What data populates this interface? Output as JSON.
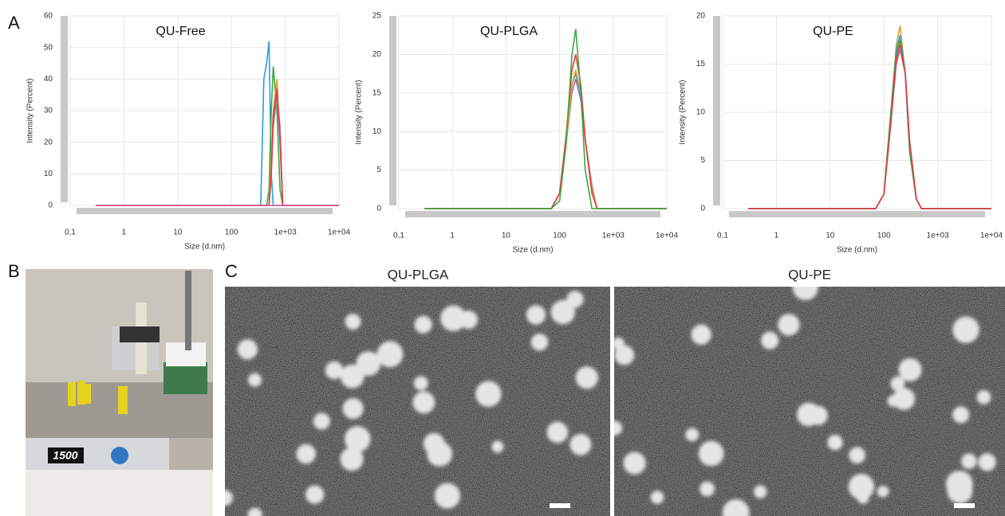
{
  "panels": {
    "a": "A",
    "b": "B",
    "c": "C",
    "tem_titles": [
      "QU-PLGA",
      "QU-PE"
    ],
    "display": "1500"
  },
  "chart_data": [
    {
      "type": "line",
      "title": "QU-Free",
      "x_label": "Size (d.nm)",
      "y_label": "Intensity (Percent)",
      "xscale": "log",
      "grid": true,
      "xlim": [
        0.1,
        10000
      ],
      "xticks": [
        {
          "value": 0.1,
          "label": "0,1"
        },
        1,
        10,
        100,
        {
          "value": 1000,
          "label": "1e+03"
        },
        {
          "value": 10000,
          "label": "1e+04"
        }
      ],
      "ylim": [
        0,
        60
      ],
      "yticks": [
        0,
        10,
        20,
        30,
        40,
        50,
        60
      ],
      "x": [
        0.3,
        350,
        400,
        450,
        500,
        550,
        600,
        700,
        800,
        900,
        10000
      ],
      "series": [
        {
          "color": "#2a9fd6",
          "values": [
            0,
            0,
            40,
            45,
            52,
            10,
            0,
            0,
            0,
            0,
            0
          ]
        },
        {
          "color": "#3aa845",
          "values": [
            0,
            0,
            0,
            0,
            5,
            30,
            44,
            30,
            5,
            0,
            0
          ]
        },
        {
          "color": "#e8a020",
          "values": [
            0,
            0,
            0,
            0,
            0,
            15,
            30,
            40,
            20,
            0,
            0
          ]
        },
        {
          "color": "#9b72c4",
          "values": [
            0,
            0,
            0,
            0,
            0,
            10,
            25,
            35,
            25,
            0,
            0
          ]
        },
        {
          "color": "#e03b3b",
          "values": [
            0,
            0,
            0,
            0,
            0,
            10,
            28,
            37,
            20,
            0,
            0
          ]
        },
        {
          "color": "#d85aa0",
          "values": [
            0,
            0,
            0,
            0,
            0,
            0,
            0,
            0,
            0,
            0,
            0
          ]
        }
      ]
    },
    {
      "type": "line",
      "title": "QU-PLGA",
      "x_label": "Size (d.nm)",
      "y_label": "Intensity (Percent)",
      "xscale": "log",
      "grid": true,
      "xlim": [
        0.1,
        10000
      ],
      "xticks": [
        {
          "value": 0.1,
          "label": "0,1"
        },
        1,
        10,
        100,
        {
          "value": 1000,
          "label": "1e+03"
        },
        {
          "value": 10000,
          "label": "1e+04"
        }
      ],
      "ylim": [
        0,
        25
      ],
      "yticks": [
        0,
        5,
        10,
        15,
        20,
        25
      ],
      "x": [
        0.3,
        70,
        100,
        130,
        170,
        200,
        250,
        300,
        400,
        500,
        10000
      ],
      "series": [
        {
          "color": "#2a9fd6",
          "values": [
            0,
            0,
            2,
            8,
            16,
            17.5,
            14.5,
            9,
            2.5,
            0,
            0
          ]
        },
        {
          "color": "#9b72c4",
          "values": [
            0,
            0,
            2,
            8,
            15,
            16.8,
            14,
            9,
            3,
            0,
            0
          ]
        },
        {
          "color": "#e8a020",
          "values": [
            0,
            0,
            2,
            8,
            16,
            18,
            15,
            9,
            2.5,
            0,
            0
          ]
        },
        {
          "color": "#e03b3b",
          "values": [
            0,
            0,
            2,
            9,
            18,
            20,
            16,
            9,
            2,
            0,
            0
          ]
        },
        {
          "color": "#3aa845",
          "values": [
            0,
            0,
            1,
            8,
            20,
            23.3,
            15,
            5,
            0,
            0,
            0
          ]
        }
      ]
    },
    {
      "type": "line",
      "title": "QU-PE",
      "x_label": "Size (d.nm)",
      "y_label": "Intensity (Percent)",
      "xscale": "log",
      "grid": true,
      "xlim": [
        0.1,
        10000
      ],
      "xticks": [
        {
          "value": 0.1,
          "label": "0,1"
        },
        1,
        10,
        100,
        {
          "value": 1000,
          "label": "1e+03"
        },
        {
          "value": 10000,
          "label": "1e+04"
        }
      ],
      "ylim": [
        0,
        20
      ],
      "yticks": [
        0,
        5,
        10,
        15,
        20
      ],
      "x": [
        0.3,
        70,
        100,
        130,
        170,
        200,
        250,
        300,
        400,
        500,
        10000
      ],
      "series": [
        {
          "color": "#e8a020",
          "values": [
            0,
            0,
            1.5,
            9,
            17,
            19,
            14,
            6,
            1,
            0,
            0
          ]
        },
        {
          "color": "#2a9fd6",
          "values": [
            0,
            0,
            1.5,
            9,
            16.5,
            18,
            14,
            6,
            1,
            0,
            0
          ]
        },
        {
          "color": "#3aa845",
          "values": [
            0,
            0,
            1.5,
            9,
            16,
            17.5,
            14,
            6,
            1,
            0,
            0
          ]
        },
        {
          "color": "#9b72c4",
          "values": [
            0,
            0,
            1.5,
            8,
            15,
            16.5,
            14,
            7,
            1,
            0,
            0
          ]
        },
        {
          "color": "#e03b3b",
          "values": [
            0,
            0,
            1.5,
            8,
            15.5,
            17,
            14,
            7,
            1,
            0,
            0
          ]
        }
      ]
    }
  ]
}
